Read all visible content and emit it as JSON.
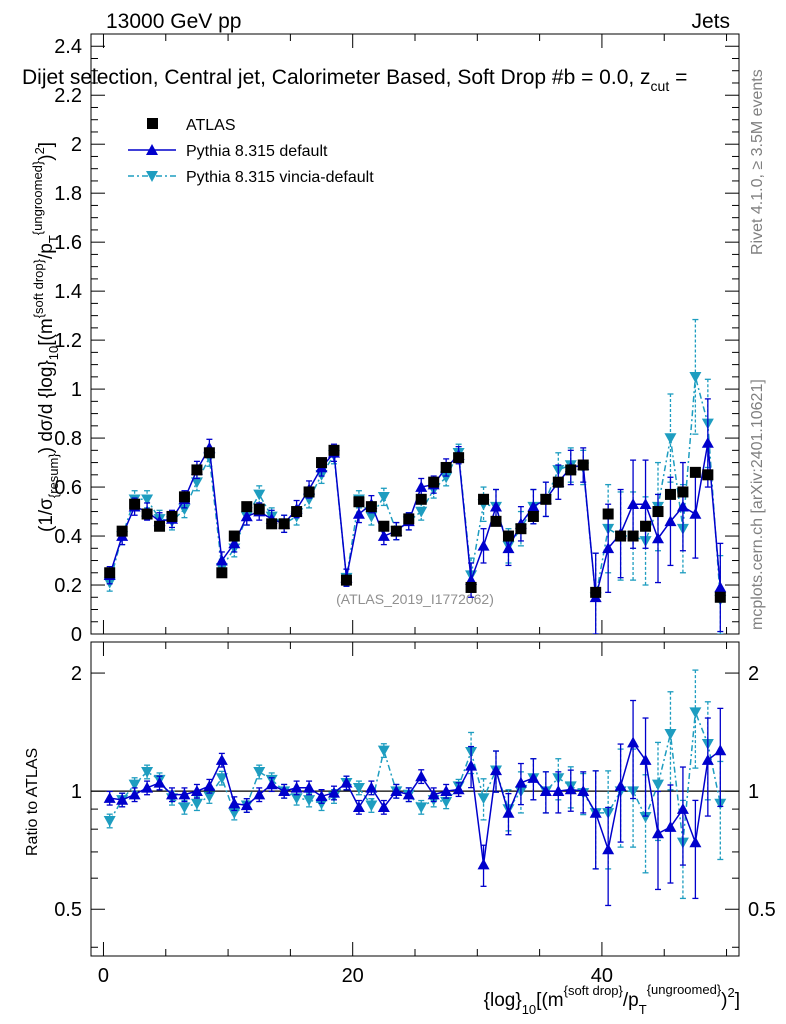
{
  "header": {
    "energy_label": "13000 GeV pp",
    "process_label": "Jets",
    "title": "Dijet selection, Central jet, Calorimeter Based, Soft Drop #b = 0.0, z",
    "title_sub": "cut",
    "title_tail": " ="
  },
  "side_labels": {
    "rivet": "Rivet 4.1.0, ≥ 3.5M events",
    "mcplots": "mcplots.cern.ch [arXiv:2401.10621]"
  },
  "watermark": "(ATLAS_2019_I1772062)",
  "axes": {
    "y_main_label": "(1/σ_{resum}) dσ/d {log}_{10}[(m^{soft drop}/p_T^{ungroomed})^2]",
    "y_ratio_label": "Ratio to ATLAS",
    "x_label": "{log}_{10}[(m^{soft drop}/p_T^{ungroomed})^2]",
    "x_ticks": [
      "0",
      "20",
      "40"
    ],
    "y_main_ticks": [
      "0",
      "0.2",
      "0.4",
      "0.6",
      "0.8",
      "1",
      "1.2",
      "1.4",
      "1.6",
      "1.8",
      "2",
      "2.2",
      "2.4"
    ],
    "y_ratio_ticks": [
      "0.5",
      "1",
      "2"
    ]
  },
  "legend": {
    "atlas": "ATLAS",
    "pythia": "Pythia 8.315 default",
    "vincia": "Pythia 8.315 vincia-default"
  },
  "colors": {
    "data": "#000000",
    "pythia": "#0000cc",
    "vincia": "#1e9dc0"
  },
  "chart_data": {
    "type": "line",
    "xlim": [
      -1,
      51
    ],
    "ylim_main": [
      0,
      2.45
    ],
    "ylim_ratio": [
      0.38,
      2.4
    ],
    "x": [
      0.5,
      1.5,
      2.5,
      3.5,
      4.5,
      5.5,
      6.5,
      7.5,
      8.5,
      9.5,
      10.5,
      11.5,
      12.5,
      13.5,
      14.5,
      15.5,
      16.5,
      17.5,
      18.5,
      19.5,
      20.5,
      21.5,
      22.5,
      23.5,
      24.5,
      25.5,
      26.5,
      27.5,
      28.5,
      29.5,
      30.5,
      31.5,
      32.5,
      33.5,
      34.5,
      35.5,
      36.5,
      37.5,
      38.5,
      39.5,
      40.5,
      41.5,
      42.5,
      43.5,
      44.5,
      45.5,
      46.5,
      47.5,
      48.5,
      49.5
    ],
    "series": [
      {
        "name": "ATLAS",
        "values": [
          0.25,
          0.42,
          0.53,
          0.49,
          0.44,
          0.48,
          0.56,
          0.67,
          0.74,
          0.25,
          0.4,
          0.52,
          0.51,
          0.45,
          0.45,
          0.5,
          0.58,
          0.7,
          0.75,
          0.22,
          0.54,
          0.52,
          0.44,
          0.42,
          0.47,
          0.55,
          0.62,
          0.68,
          0.72,
          0.19,
          0.55,
          0.46,
          0.4,
          0.43,
          0.48,
          0.55,
          0.62,
          0.67,
          0.69,
          0.17,
          0.49,
          0.4,
          0.4,
          0.44,
          0.5,
          0.57,
          0.58,
          0.66,
          0.65,
          0.15
        ]
      },
      {
        "name": "Pythia 8.315 default",
        "values": [
          0.24,
          0.4,
          0.52,
          0.5,
          0.46,
          0.47,
          0.55,
          0.67,
          0.76,
          0.3,
          0.37,
          0.48,
          0.5,
          0.47,
          0.45,
          0.51,
          0.59,
          0.68,
          0.74,
          0.23,
          0.49,
          0.53,
          0.4,
          0.42,
          0.46,
          0.6,
          0.61,
          0.68,
          0.73,
          0.22,
          0.36,
          0.52,
          0.35,
          0.45,
          0.52,
          0.55,
          0.62,
          0.68,
          0.69,
          0.15,
          0.35,
          0.41,
          0.53,
          0.53,
          0.39,
          0.46,
          0.52,
          0.49,
          0.78,
          0.19
        ]
      },
      {
        "name": "Pythia 8.315 vincia-default",
        "values": [
          0.21,
          0.4,
          0.55,
          0.55,
          0.47,
          0.46,
          0.51,
          0.62,
          0.72,
          0.27,
          0.35,
          0.48,
          0.57,
          0.48,
          0.45,
          0.48,
          0.55,
          0.65,
          0.73,
          0.23,
          0.55,
          0.48,
          0.56,
          0.42,
          0.46,
          0.5,
          0.59,
          0.64,
          0.74,
          0.24,
          0.53,
          0.52,
          0.36,
          0.43,
          0.52,
          0.55,
          0.67,
          0.69,
          0.68,
          0.15,
          0.43,
          0.4,
          0.4,
          0.38,
          0.52,
          0.8,
          0.43,
          1.05,
          0.86,
          0.14
        ]
      }
    ],
    "ratio": [
      {
        "name": "Pythia 8.315 default",
        "values": [
          0.96,
          0.95,
          0.98,
          1.02,
          1.05,
          0.98,
          0.98,
          1.0,
          1.03,
          1.2,
          0.93,
          0.92,
          0.98,
          1.04,
          1.0,
          1.02,
          1.02,
          0.97,
          0.99,
          1.05,
          0.91,
          1.02,
          0.91,
          1.0,
          0.98,
          1.09,
          0.98,
          1.0,
          1.01,
          1.16,
          0.65,
          1.13,
          0.88,
          1.05,
          1.08,
          1.0,
          1.0,
          1.01,
          1.0,
          0.88,
          0.71,
          1.03,
          1.33,
          1.2,
          0.78,
          0.81,
          0.9,
          0.74,
          1.2,
          1.27
        ]
      },
      {
        "name": "Pythia 8.315 vincia-default",
        "values": [
          0.84,
          0.95,
          1.04,
          1.12,
          1.07,
          0.96,
          0.91,
          0.93,
          0.97,
          1.08,
          0.88,
          0.92,
          1.12,
          1.07,
          1.0,
          0.96,
          0.95,
          0.93,
          0.97,
          1.05,
          1.02,
          0.92,
          1.27,
          1.0,
          0.98,
          0.91,
          0.95,
          0.94,
          1.03,
          1.26,
          0.96,
          1.13,
          0.9,
          1.0,
          1.08,
          1.0,
          1.08,
          1.03,
          0.99,
          0.88,
          0.88,
          1.0,
          1.0,
          0.86,
          1.04,
          1.4,
          0.74,
          1.59,
          1.32,
          0.93
        ]
      }
    ]
  }
}
